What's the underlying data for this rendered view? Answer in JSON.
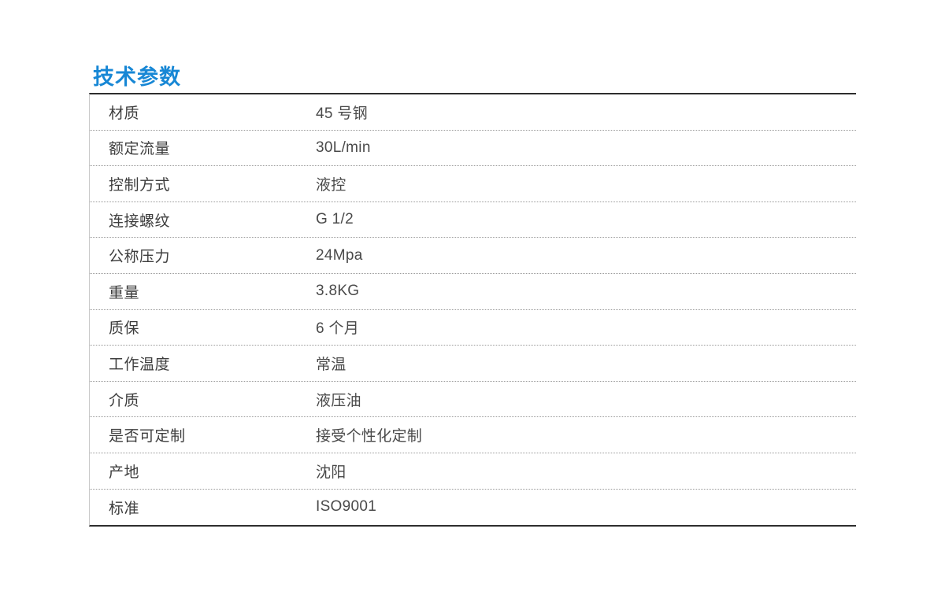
{
  "page": {
    "title": "技术参数",
    "accent_color": "#1787d5"
  },
  "table": {
    "rows": [
      {
        "label": "材质",
        "value": "45 号钢"
      },
      {
        "label": "额定流量",
        "value": "30L/min"
      },
      {
        "label": "控制方式",
        "value": "液控"
      },
      {
        "label": "连接螺纹",
        "value": "G 1/2"
      },
      {
        "label": "公称压力",
        "value": "24Mpa"
      },
      {
        "label": "重量",
        "value": "3.8KG"
      },
      {
        "label": "质保",
        "value": "6 个月"
      },
      {
        "label": "工作温度",
        "value": "常温"
      },
      {
        "label": "介质",
        "value": "液压油"
      },
      {
        "label": "是否可定制",
        "value": "接受个性化定制"
      },
      {
        "label": "产地",
        "value": "沈阳"
      },
      {
        "label": "标准",
        "value": "ISO9001"
      }
    ]
  }
}
